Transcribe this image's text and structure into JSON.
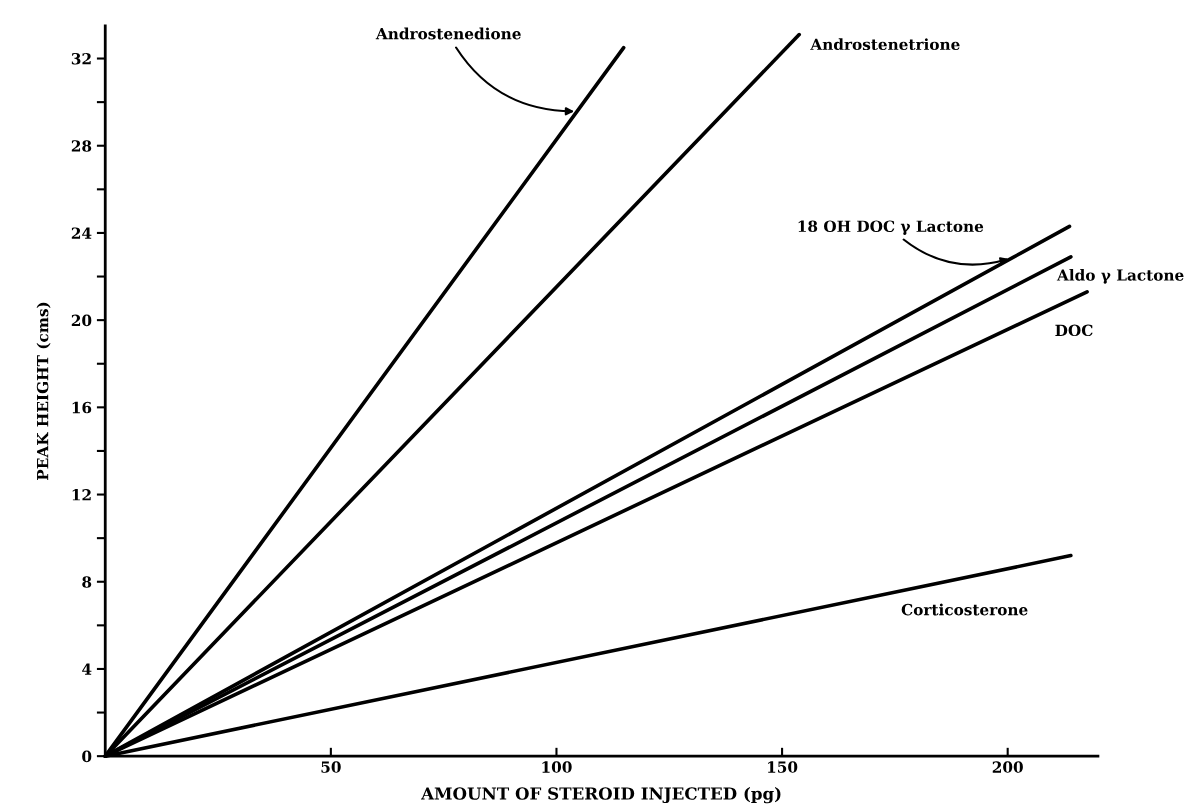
{
  "chart_data": {
    "type": "line",
    "xlabel": "AMOUNT OF STEROID INJECTED (pg)",
    "ylabel": "PEAK HEIGHT (cms)",
    "series": [
      {
        "name": "Androstenedione",
        "color": "#000000",
        "x": [
          0,
          114.9
        ],
        "values": [
          0,
          32.5
        ]
      },
      {
        "name": "Androstenetrione",
        "color": "#000000",
        "x": [
          0,
          153.8
        ],
        "values": [
          0,
          33.1
        ]
      },
      {
        "name": "18 OH DOC γ Lactone",
        "color": "#000000",
        "x": [
          0,
          213.7
        ],
        "values": [
          0,
          24.3
        ]
      },
      {
        "name": "Aldo γ Lactone",
        "color": "#000000",
        "x": [
          0,
          214
        ],
        "values": [
          0,
          22.9
        ]
      },
      {
        "name": "DOC",
        "color": "#000000",
        "x": [
          0,
          217.6
        ],
        "values": [
          0,
          21.3
        ]
      },
      {
        "name": "Corticosterone",
        "color": "#000000",
        "x": [
          0,
          214
        ],
        "values": [
          0,
          9.2
        ]
      }
    ],
    "xlim": [
      0,
      220
    ],
    "ylim": [
      0,
      33.5
    ],
    "xticks": [
      50,
      100,
      150,
      200
    ],
    "yticks": [
      0,
      {
        "value": 2,
        "label": null
      },
      4,
      {
        "value": 6,
        "label": null
      },
      8,
      {
        "value": 10,
        "label": null
      },
      12,
      {
        "value": 14,
        "label": null
      },
      16,
      {
        "value": 18,
        "label": null
      },
      20,
      {
        "value": 22,
        "label": null
      },
      24,
      {
        "value": 26,
        "label": null
      },
      28,
      {
        "value": 30,
        "label": null
      },
      32
    ],
    "grid": false,
    "legend": false,
    "marker": "none",
    "line_style": "solid"
  }
}
